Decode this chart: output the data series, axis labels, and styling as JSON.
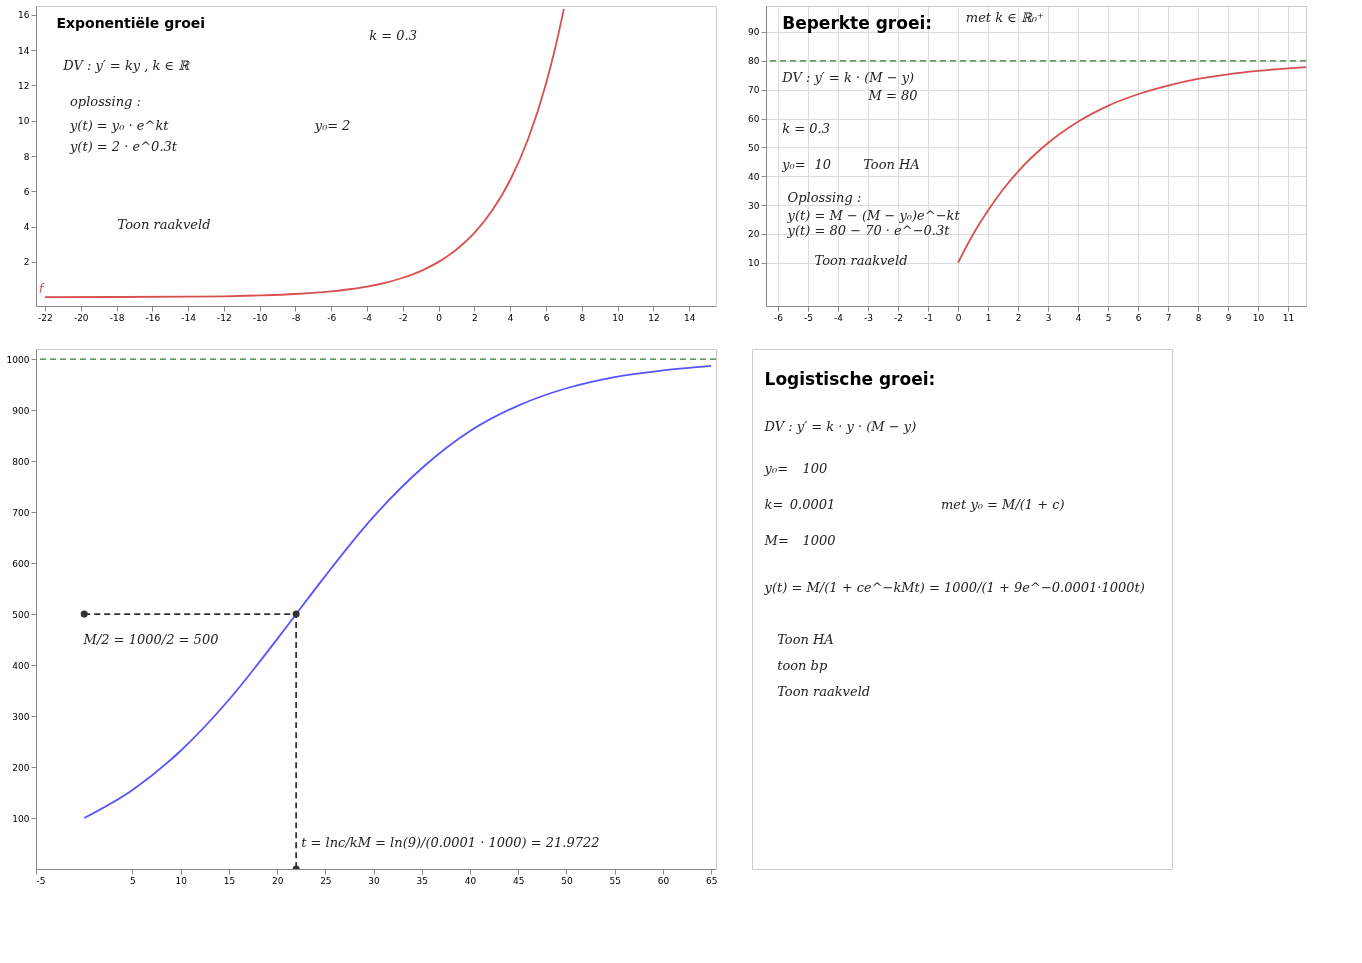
{
  "chart_data": [
    {
      "type": "line",
      "title": "Exponentiële groei",
      "annotations": [
        "DV : y′ = ky  , k ∈ ℝ",
        "k = 0.3",
        "oplossing :",
        "y(t) = y₀ · e^kt",
        "y(t) = 2 · e^0.3t",
        "y₀=",
        "2",
        "Toon raakveld"
      ],
      "series": [
        {
          "name": "f",
          "color": "#d94f4f",
          "x": [
            -22,
            -18,
            -14,
            -12,
            -10,
            -8,
            -6,
            -5,
            -4,
            -3,
            -2,
            -1,
            0,
            1,
            2,
            3,
            4,
            5,
            6,
            6.5,
            7
          ],
          "values": [
            0.0,
            0.01,
            0.03,
            0.05,
            0.1,
            0.18,
            0.33,
            0.45,
            0.6,
            0.81,
            1.1,
            1.48,
            2,
            2.7,
            3.64,
            4.92,
            6.64,
            8.96,
            12.1,
            14.06,
            16.33
          ]
        }
      ],
      "xlim": [
        -22.5,
        15.5
      ],
      "ylim": [
        -0.5,
        16.5
      ],
      "xticks": [
        -22,
        -20,
        -18,
        -16,
        -14,
        -12,
        -10,
        -8,
        -6,
        -4,
        -2,
        0,
        2,
        4,
        6,
        8,
        10,
        12,
        14
      ],
      "yticks": [
        2,
        4,
        6,
        8,
        10,
        12,
        14,
        16
      ],
      "grid": false
    },
    {
      "type": "line",
      "title": "Beperkte groei:",
      "annotations": [
        "DV : y′ = k · (M − y)",
        "M = 80",
        "k = 0.3",
        "y₀=",
        "10",
        "Toon HA",
        "Oplossing :",
        "y(t) = M − (M − y₀)e^−kt",
        "y(t) = 80 − 70 · e^−0.3t",
        "Toon raakveld",
        "met k ∈ ℝ₀⁺"
      ],
      "series": [
        {
          "color": "#d94f4f",
          "x": [
            0,
            0.5,
            1,
            1.5,
            2,
            3,
            4,
            5,
            6,
            7,
            8,
            9,
            10,
            11,
            11.6
          ],
          "values": [
            10,
            19.8,
            28.1,
            35.4,
            41.6,
            51.5,
            58.9,
            64.4,
            68.4,
            71.4,
            73.7,
            75.3,
            76.5,
            77.4,
            77.8
          ]
        }
      ],
      "ref_lines": [
        {
          "axis": "y",
          "value": 80,
          "color": "#2e7d32",
          "line_style": "dashed"
        }
      ],
      "xlim": [
        -6.4,
        11.6
      ],
      "ylim": [
        -5,
        99
      ],
      "xticks": [
        -6,
        -5,
        -4,
        -3,
        -2,
        -1,
        0,
        1,
        2,
        3,
        4,
        5,
        6,
        7,
        8,
        9,
        10,
        11
      ],
      "yticks": [
        10,
        20,
        30,
        40,
        50,
        60,
        70,
        80,
        90
      ],
      "grid": true
    },
    {
      "type": "line",
      "annotations": [
        "M/2 = 1000/2 = 500",
        "t = lnc/kM = ln(9)/(0.0001 · 1000) = 21.9722"
      ],
      "series": [
        {
          "color": "#5555ff",
          "x": [
            0,
            5,
            10,
            15,
            20,
            21.9722,
            25,
            30,
            35,
            40,
            45,
            50,
            55,
            60,
            65
          ],
          "values": [
            100,
            155,
            232,
            332,
            451,
            500,
            575,
            691,
            786,
            859,
            909,
            943,
            965,
            978,
            987
          ]
        },
        {
          "color": "#333333",
          "line_style": "dashed",
          "marker": "circle",
          "x": [
            0,
            21.9722,
            21.9722
          ],
          "values": [
            500,
            500,
            0
          ]
        }
      ],
      "ref_lines": [
        {
          "axis": "y",
          "value": 1000,
          "color": "#2e7d32",
          "line_style": "dashed"
        }
      ],
      "xlim": [
        -5,
        65.5
      ],
      "ylim": [
        0,
        1020
      ],
      "xticks": [
        -5,
        5,
        10,
        15,
        20,
        25,
        30,
        35,
        40,
        45,
        50,
        55,
        60,
        65
      ],
      "yticks": [
        100,
        200,
        300,
        400,
        500,
        600,
        700,
        800,
        900,
        1000
      ],
      "grid": false
    },
    {
      "type": "other",
      "title": "Logistische groei:",
      "annotations": [
        "DV : y′ = k · y · (M − y)",
        "y₀=",
        "100",
        "k=",
        "0.0001",
        "met y₀ = M/(1 + c)",
        "M=",
        "1000",
        "y(t) = M/(1 + ce^−kMt) = 1000/(1 + 9e^−0.0001·1000t)",
        "Toon HA",
        "toon bp",
        "Toon raakveld"
      ]
    }
  ]
}
